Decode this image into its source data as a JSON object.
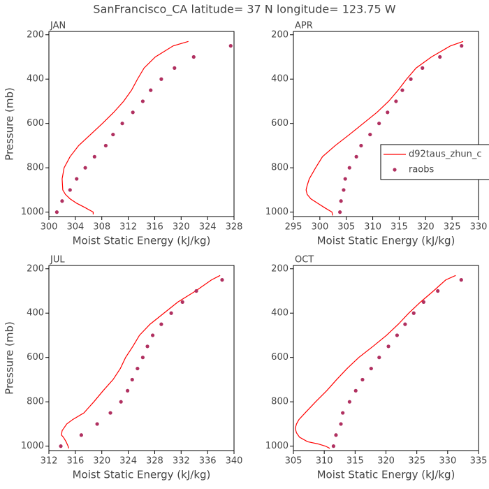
{
  "title": "SanFrancisco_CA  latitude= 37 N longitude= 123.75 W",
  "chart_data": [
    {
      "type": "line",
      "panel_label": "JAN",
      "xlabel": "Moist Static Energy (kJ/kg)",
      "ylabel": "Pressure (mb)",
      "xlim": [
        300,
        328
      ],
      "ylim": [
        1020,
        185
      ],
      "xticks": [
        300,
        304,
        308,
        312,
        316,
        320,
        324,
        328
      ],
      "yticks": [
        200,
        400,
        600,
        800,
        1000
      ],
      "series": [
        {
          "color": "#ff0000",
          "style": "line",
          "x": [
            306.7,
            306.7,
            305.5,
            304.2,
            303.2,
            302.5,
            302.1,
            302.0,
            302.3,
            303.2,
            304.5,
            306.3,
            308.1,
            309.8,
            311.3,
            312.5,
            313.4,
            314.4,
            316.1,
            318.8,
            321.1
          ],
          "values": [
            1010,
            1000,
            980,
            960,
            940,
            920,
            900,
            850,
            800,
            750,
            700,
            650,
            600,
            550,
            500,
            450,
            400,
            350,
            300,
            250,
            230
          ]
        },
        {
          "color": "#b03060",
          "style": "markers",
          "x": [
            301.2,
            302.0,
            303.2,
            304.2,
            305.5,
            306.9,
            308.6,
            309.7,
            311.1,
            312.7,
            314.2,
            315.4,
            317.0,
            319.0,
            321.9,
            327.5
          ],
          "values": [
            1000,
            950,
            900,
            850,
            800,
            750,
            700,
            650,
            600,
            550,
            500,
            450,
            400,
            350,
            300,
            250
          ]
        }
      ]
    },
    {
      "type": "line",
      "panel_label": "APR",
      "xlabel": "Moist Static Energy (kJ/kg)",
      "xlim": [
        295,
        330
      ],
      "ylim": [
        1020,
        185
      ],
      "xticks": [
        295,
        300,
        305,
        310,
        315,
        320,
        325,
        330
      ],
      "yticks": [
        200,
        400,
        600,
        800,
        1000
      ],
      "legend": "right",
      "series": [
        {
          "name": "d92taus_zhun_c",
          "color": "#ff0000",
          "style": "line",
          "x": [
            302.4,
            302.3,
            300.9,
            299.6,
            298.3,
            297.6,
            297.4,
            297.6,
            298.0,
            299.2,
            300.5,
            302.9,
            305.6,
            308.2,
            310.8,
            313.0,
            314.8,
            316.4,
            318.2,
            321.1,
            324.7,
            327.1
          ],
          "values": [
            1015,
            1000,
            980,
            960,
            940,
            920,
            900,
            880,
            850,
            800,
            750,
            700,
            650,
            600,
            550,
            500,
            450,
            400,
            350,
            300,
            250,
            230
          ]
        },
        {
          "name": "raobs",
          "color": "#b03060",
          "style": "markers",
          "x": [
            303.8,
            304.0,
            304.5,
            304.8,
            305.6,
            306.9,
            307.8,
            309.5,
            311.2,
            312.8,
            314.4,
            315.6,
            317.2,
            319.4,
            322.7,
            326.8
          ],
          "values": [
            1000,
            950,
            900,
            850,
            800,
            750,
            700,
            650,
            600,
            550,
            500,
            450,
            400,
            350,
            300,
            250
          ]
        }
      ]
    },
    {
      "type": "line",
      "panel_label": "JUL",
      "xlabel": "Moist Static Energy (kJ/kg)",
      "ylabel": "Pressure (mb)",
      "xlim": [
        312,
        340
      ],
      "ylim": [
        1020,
        185
      ],
      "xticks": [
        312,
        316,
        320,
        324,
        328,
        332,
        336,
        340
      ],
      "yticks": [
        200,
        400,
        600,
        800,
        1000
      ],
      "series": [
        {
          "color": "#ff0000",
          "style": "line",
          "x": [
            315.0,
            314.9,
            314.6,
            314.2,
            313.9,
            314.0,
            314.7,
            315.6,
            317.3,
            318.8,
            320.2,
            321.7,
            322.8,
            323.6,
            324.7,
            325.7,
            327.3,
            329.4,
            331.5,
            334.2,
            336.6,
            337.9
          ],
          "values": [
            1010,
            1000,
            980,
            960,
            950,
            930,
            900,
            880,
            850,
            800,
            750,
            700,
            650,
            600,
            550,
            500,
            450,
            400,
            350,
            300,
            250,
            230
          ]
        },
        {
          "color": "#b03060",
          "style": "markers",
          "x": [
            313.8,
            316.9,
            319.3,
            321.3,
            322.9,
            323.9,
            324.6,
            325.4,
            326.2,
            326.9,
            327.7,
            329.0,
            330.5,
            332.2,
            334.3,
            338.2
          ],
          "values": [
            1000,
            950,
            900,
            850,
            800,
            750,
            700,
            650,
            600,
            550,
            500,
            450,
            400,
            350,
            300,
            250
          ]
        }
      ]
    },
    {
      "type": "line",
      "panel_label": "OCT",
      "xlabel": "Moist Static Energy (kJ/kg)",
      "xlim": [
        305,
        335
      ],
      "ylim": [
        1020,
        185
      ],
      "xticks": [
        305,
        310,
        315,
        320,
        325,
        330,
        335
      ],
      "yticks": [
        200,
        400,
        600,
        800,
        1000
      ],
      "series": [
        {
          "color": "#ff0000",
          "style": "line",
          "x": [
            310.9,
            310.2,
            309.0,
            307.3,
            306.0,
            305.5,
            305.3,
            305.5,
            305.9,
            306.9,
            308.6,
            310.4,
            312.0,
            313.7,
            315.6,
            317.9,
            320.1,
            322.0,
            323.7,
            325.6,
            327.7,
            329.7,
            331.3
          ],
          "values": [
            1010,
            1000,
            990,
            980,
            960,
            940,
            920,
            900,
            880,
            850,
            800,
            750,
            700,
            650,
            600,
            550,
            500,
            450,
            400,
            350,
            300,
            250,
            230
          ]
        },
        {
          "color": "#b03060",
          "style": "markers",
          "x": [
            311.5,
            311.9,
            312.7,
            313.0,
            314.1,
            315.1,
            316.2,
            317.6,
            318.9,
            320.4,
            321.8,
            323.1,
            324.5,
            326.1,
            328.4,
            332.2
          ],
          "values": [
            1000,
            950,
            900,
            850,
            800,
            750,
            700,
            650,
            600,
            550,
            500,
            450,
            400,
            350,
            300,
            250
          ]
        }
      ]
    }
  ]
}
